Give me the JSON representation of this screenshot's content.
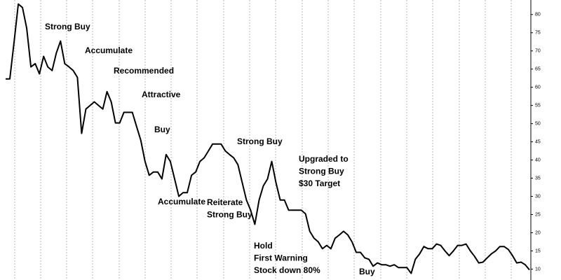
{
  "chart_data": {
    "type": "line",
    "color": "#000000",
    "values": [
      62.3,
      62.3,
      72.3,
      82.9,
      81.9,
      76.2,
      65.6,
      66.5,
      63.7,
      68.5,
      65.6,
      64.6,
      69.4,
      72.7,
      66.5,
      65.6,
      64.6,
      62.7,
      47.3,
      54,
      55,
      56,
      55,
      54,
      58.8,
      56,
      50.2,
      50.2,
      53.1,
      53.1,
      53.1,
      49.2,
      45.4,
      39.6,
      35.8,
      36.7,
      36.7,
      34.8,
      41.5,
      39.6,
      34.8,
      30,
      31,
      31,
      35.8,
      36.7,
      39.6,
      40.6,
      42.5,
      44.4,
      44.4,
      44.4,
      42.5,
      41.5,
      40.6,
      38.7,
      33.8,
      29,
      26.2,
      22.3,
      29,
      32.9,
      34.8,
      39.6,
      33.8,
      29,
      29,
      26.2,
      26.2,
      26.2,
      26.2,
      25.2,
      20.4,
      18.5,
      17.5,
      15.6,
      16.5,
      15.6,
      18.5,
      19.4,
      20.4,
      19.4,
      17.5,
      14.6,
      14.6,
      13.1,
      12.7,
      10.8,
      11.7,
      11.2,
      11.2,
      10.8,
      11.2,
      10.4,
      10.4,
      10.4,
      8.8,
      12.7,
      14.2,
      16.2,
      15.6,
      15.6,
      16.9,
      16.5,
      15,
      13.7,
      15,
      16.5,
      16.5,
      16.9,
      15,
      13.5,
      11.7,
      11.9,
      13.1,
      14.2,
      15,
      16.2,
      16.2,
      15.4,
      13.7,
      11.7,
      11.9,
      11.2,
      9.8
    ],
    "ylim": [
      7,
      84
    ],
    "yticks": [
      10,
      15,
      20,
      25,
      30,
      35,
      40,
      45,
      50,
      55,
      60,
      65,
      70,
      75,
      80
    ],
    "annotations": [
      [
        "Strong Buy"
      ],
      [
        "Accumulate"
      ],
      [
        "Recommended"
      ],
      [
        "Attractive"
      ],
      [
        "Buy"
      ],
      [
        "Strong Buy"
      ],
      [
        "Upgraded to",
        "Strong Buy",
        "$30 Target"
      ],
      [
        "Accumulate"
      ],
      [
        "Reiterate",
        "Strong Buy"
      ],
      [
        "Hold",
        "First Warning",
        "Stock down 80%"
      ],
      [
        "Buy"
      ]
    ]
  }
}
